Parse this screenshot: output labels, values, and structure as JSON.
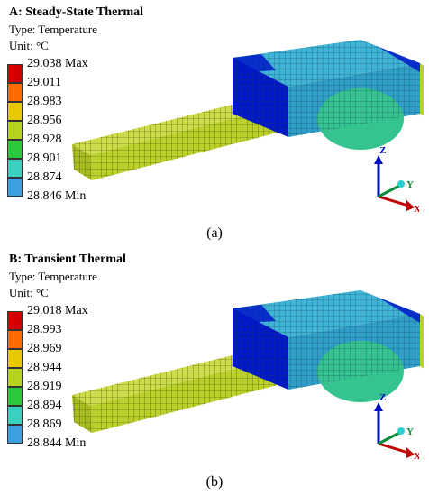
{
  "panels": [
    {
      "title": "A: Steady-State Thermal",
      "type_label": "Type: Temperature",
      "unit_label": "Unit: °C",
      "legend": [
        {
          "value": "29.038",
          "suffix": "Max",
          "color": "#d40000"
        },
        {
          "value": "29.011",
          "suffix": "",
          "color": "#ff6a00"
        },
        {
          "value": "28.983",
          "suffix": "",
          "color": "#e8c800"
        },
        {
          "value": "28.956",
          "suffix": "",
          "color": "#b7d31f"
        },
        {
          "value": "28.928",
          "suffix": "",
          "color": "#2ac83a"
        },
        {
          "value": "28.901",
          "suffix": "",
          "color": "#3ad0c0"
        },
        {
          "value": "28.874",
          "suffix": "",
          "color": "#3aa0e0"
        },
        {
          "value": "28.846",
          "suffix": "Min",
          "color": "#0018c8"
        }
      ],
      "axes": {
        "z": "Z",
        "y": "Y",
        "x": "X"
      },
      "caption": "(a)"
    },
    {
      "title": "B: Transient Thermal",
      "type_label": "Type: Temperature",
      "unit_label": "Unit: °C",
      "legend": [
        {
          "value": "29.018",
          "suffix": "Max",
          "color": "#d40000"
        },
        {
          "value": "28.993",
          "suffix": "",
          "color": "#ff6a00"
        },
        {
          "value": "28.969",
          "suffix": "",
          "color": "#e8c800"
        },
        {
          "value": "28.944",
          "suffix": "",
          "color": "#b7d31f"
        },
        {
          "value": "28.919",
          "suffix": "",
          "color": "#2ac83a"
        },
        {
          "value": "28.894",
          "suffix": "",
          "color": "#3ad0c0"
        },
        {
          "value": "28.869",
          "suffix": "",
          "color": "#3aa0e0"
        },
        {
          "value": "28.844",
          "suffix": "Min",
          "color": "#0018c8"
        }
      ],
      "axes": {
        "z": "Z",
        "y": "Y",
        "x": "X"
      },
      "caption": "(b)"
    }
  ],
  "colors": {
    "rail": "#bcd02a",
    "block_top": "#3fb4d6",
    "block_side": "#2f9fc8",
    "block_end": "#0018c8",
    "hot_spot": "#35c48f"
  }
}
